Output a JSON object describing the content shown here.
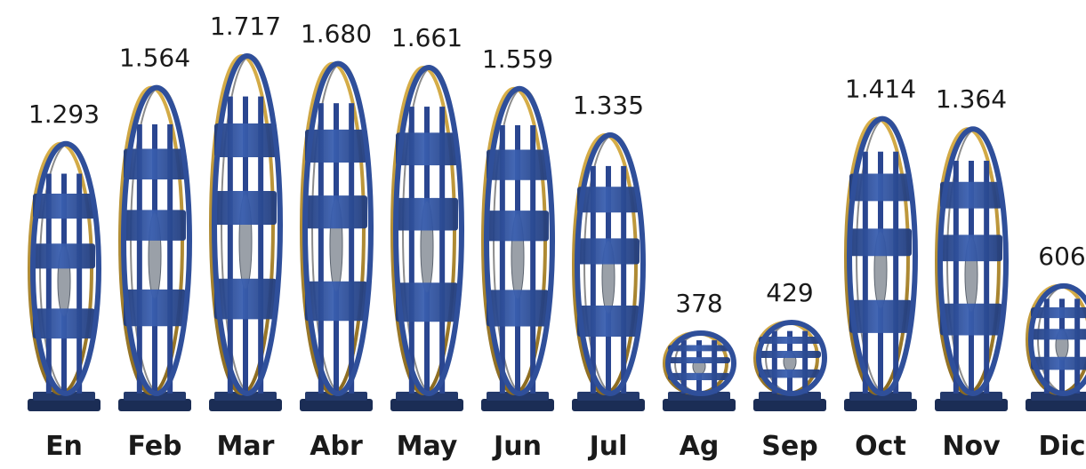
{
  "chart_data": {
    "type": "bar",
    "categories": [
      "En",
      "Feb",
      "Mar",
      "Abr",
      "May",
      "Jun",
      "Jul",
      "Ag",
      "Sep",
      "Oct",
      "Nov",
      "Dic"
    ],
    "values": [
      1293,
      1564,
      1717,
      1680,
      1661,
      1559,
      1335,
      378,
      429,
      1414,
      1364,
      606
    ],
    "value_labels": [
      "1.293",
      "1.564",
      "1.717",
      "1.680",
      "1.661",
      "1.559",
      "1.335",
      "378",
      "429",
      "1.414",
      "1.364",
      "606"
    ],
    "title": "",
    "xlabel": "",
    "ylabel": "",
    "ylim": [
      0,
      1717
    ],
    "grid": false,
    "bar_style": "pictogram-sculpture",
    "colors": {
      "sculpture_blue": "#2f4f9a",
      "sculpture_dark": "#1f3a7a",
      "ring_gold": "#b8902e",
      "ring_steel": "#8c8c8c",
      "base": "#1b2d55",
      "label": "#1a1a1a"
    }
  }
}
